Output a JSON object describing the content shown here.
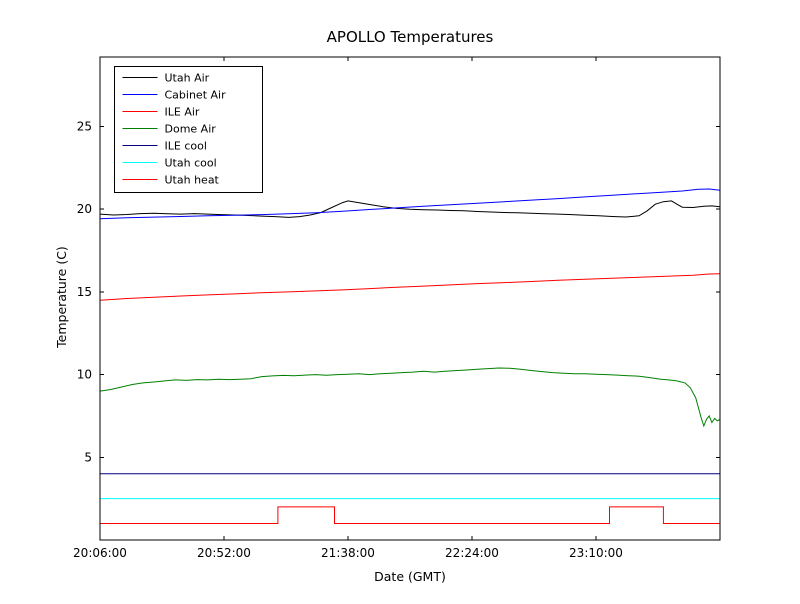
{
  "chart_data": {
    "type": "line",
    "title": "APOLLO Temperatures",
    "xlabel": "Date (GMT)",
    "ylabel": "Temperature (C)",
    "x_axis_unit": "minutes after 20:06:00 GMT",
    "xlim": [
      0,
      230
    ],
    "ylim": [
      0,
      29.2
    ],
    "grid": false,
    "legend_position": "upper-left",
    "frame_color": "#000000",
    "x_ticks": [
      {
        "pos": 0,
        "label": "20:06:00"
      },
      {
        "pos": 46,
        "label": "20:52:00"
      },
      {
        "pos": 92,
        "label": "21:38:00"
      },
      {
        "pos": 138,
        "label": "22:24:00"
      },
      {
        "pos": 184,
        "label": "23:10:00"
      }
    ],
    "y_ticks": [
      {
        "pos": 5,
        "label": "5"
      },
      {
        "pos": 10,
        "label": "10"
      },
      {
        "pos": 15,
        "label": "15"
      },
      {
        "pos": 20,
        "label": "20"
      },
      {
        "pos": 25,
        "label": "25"
      }
    ],
    "series": [
      {
        "name": "Utah Air",
        "color": "#000000",
        "points": [
          [
            0,
            19.7
          ],
          [
            5,
            19.65
          ],
          [
            10,
            19.68
          ],
          [
            15,
            19.73
          ],
          [
            20,
            19.75
          ],
          [
            25,
            19.72
          ],
          [
            30,
            19.7
          ],
          [
            35,
            19.73
          ],
          [
            40,
            19.7
          ],
          [
            45,
            19.67
          ],
          [
            50,
            19.65
          ],
          [
            55,
            19.62
          ],
          [
            60,
            19.58
          ],
          [
            65,
            19.55
          ],
          [
            70,
            19.5
          ],
          [
            74,
            19.55
          ],
          [
            78,
            19.65
          ],
          [
            82,
            19.8
          ],
          [
            86,
            20.1
          ],
          [
            90,
            20.4
          ],
          [
            92,
            20.5
          ],
          [
            95,
            20.42
          ],
          [
            100,
            20.28
          ],
          [
            105,
            20.15
          ],
          [
            110,
            20.05
          ],
          [
            115,
            20.0
          ],
          [
            120,
            19.97
          ],
          [
            125,
            19.95
          ],
          [
            130,
            19.92
          ],
          [
            135,
            19.9
          ],
          [
            140,
            19.86
          ],
          [
            145,
            19.83
          ],
          [
            150,
            19.8
          ],
          [
            155,
            19.78
          ],
          [
            160,
            19.75
          ],
          [
            165,
            19.72
          ],
          [
            170,
            19.7
          ],
          [
            175,
            19.67
          ],
          [
            180,
            19.63
          ],
          [
            185,
            19.6
          ],
          [
            190,
            19.56
          ],
          [
            195,
            19.53
          ],
          [
            200,
            19.6
          ],
          [
            203,
            19.9
          ],
          [
            206,
            20.3
          ],
          [
            209,
            20.45
          ],
          [
            212,
            20.5
          ],
          [
            214,
            20.3
          ],
          [
            216,
            20.12
          ],
          [
            220,
            20.1
          ],
          [
            224,
            20.18
          ],
          [
            227,
            20.2
          ],
          [
            230,
            20.15
          ]
        ]
      },
      {
        "name": "Cabinet Air",
        "color": "#0000ff",
        "points": [
          [
            0,
            19.42
          ],
          [
            10,
            19.48
          ],
          [
            20,
            19.52
          ],
          [
            30,
            19.56
          ],
          [
            40,
            19.6
          ],
          [
            50,
            19.63
          ],
          [
            60,
            19.67
          ],
          [
            70,
            19.72
          ],
          [
            80,
            19.78
          ],
          [
            90,
            19.88
          ],
          [
            100,
            19.98
          ],
          [
            110,
            20.08
          ],
          [
            120,
            20.18
          ],
          [
            130,
            20.27
          ],
          [
            140,
            20.36
          ],
          [
            150,
            20.45
          ],
          [
            160,
            20.55
          ],
          [
            170,
            20.64
          ],
          [
            180,
            20.74
          ],
          [
            190,
            20.84
          ],
          [
            200,
            20.94
          ],
          [
            210,
            21.04
          ],
          [
            216,
            21.1
          ],
          [
            222,
            21.2
          ],
          [
            226,
            21.22
          ],
          [
            230,
            21.15
          ]
        ]
      },
      {
        "name": "ILE Air",
        "color": "#ff0000",
        "points": [
          [
            0,
            14.5
          ],
          [
            10,
            14.6
          ],
          [
            20,
            14.68
          ],
          [
            30,
            14.75
          ],
          [
            40,
            14.82
          ],
          [
            50,
            14.88
          ],
          [
            60,
            14.95
          ],
          [
            70,
            15.0
          ],
          [
            80,
            15.06
          ],
          [
            90,
            15.12
          ],
          [
            100,
            15.2
          ],
          [
            110,
            15.28
          ],
          [
            120,
            15.35
          ],
          [
            130,
            15.42
          ],
          [
            140,
            15.5
          ],
          [
            150,
            15.56
          ],
          [
            160,
            15.63
          ],
          [
            170,
            15.7
          ],
          [
            180,
            15.76
          ],
          [
            190,
            15.82
          ],
          [
            200,
            15.88
          ],
          [
            210,
            15.94
          ],
          [
            220,
            16.0
          ],
          [
            226,
            16.08
          ],
          [
            230,
            16.1
          ]
        ]
      },
      {
        "name": "Dome Air",
        "color": "#008000",
        "points": [
          [
            0,
            9.0
          ],
          [
            4,
            9.1
          ],
          [
            8,
            9.25
          ],
          [
            12,
            9.4
          ],
          [
            16,
            9.5
          ],
          [
            20,
            9.55
          ],
          [
            24,
            9.62
          ],
          [
            28,
            9.68
          ],
          [
            32,
            9.65
          ],
          [
            36,
            9.7
          ],
          [
            40,
            9.68
          ],
          [
            44,
            9.72
          ],
          [
            48,
            9.7
          ],
          [
            52,
            9.72
          ],
          [
            56,
            9.75
          ],
          [
            60,
            9.88
          ],
          [
            64,
            9.92
          ],
          [
            68,
            9.95
          ],
          [
            72,
            9.93
          ],
          [
            76,
            9.97
          ],
          [
            80,
            10.0
          ],
          [
            84,
            9.96
          ],
          [
            88,
            10.0
          ],
          [
            92,
            10.02
          ],
          [
            96,
            10.05
          ],
          [
            100,
            10.0
          ],
          [
            104,
            10.05
          ],
          [
            108,
            10.08
          ],
          [
            112,
            10.12
          ],
          [
            116,
            10.15
          ],
          [
            120,
            10.2
          ],
          [
            124,
            10.15
          ],
          [
            128,
            10.2
          ],
          [
            132,
            10.24
          ],
          [
            136,
            10.28
          ],
          [
            140,
            10.32
          ],
          [
            144,
            10.36
          ],
          [
            148,
            10.4
          ],
          [
            152,
            10.38
          ],
          [
            156,
            10.32
          ],
          [
            160,
            10.25
          ],
          [
            164,
            10.18
          ],
          [
            168,
            10.12
          ],
          [
            172,
            10.08
          ],
          [
            176,
            10.05
          ],
          [
            180,
            10.05
          ],
          [
            184,
            10.02
          ],
          [
            188,
            10.0
          ],
          [
            192,
            9.97
          ],
          [
            196,
            9.93
          ],
          [
            200,
            9.9
          ],
          [
            204,
            9.82
          ],
          [
            208,
            9.72
          ],
          [
            211,
            9.68
          ],
          [
            214,
            9.62
          ],
          [
            217,
            9.5
          ],
          [
            219,
            9.2
          ],
          [
            221,
            8.6
          ],
          [
            223,
            7.4
          ],
          [
            224,
            6.9
          ],
          [
            225,
            7.3
          ],
          [
            226,
            7.5
          ],
          [
            227,
            7.1
          ],
          [
            228,
            7.35
          ],
          [
            229,
            7.2
          ],
          [
            230,
            7.3
          ]
        ]
      },
      {
        "name": "ILE cool",
        "color": "#000080",
        "points": [
          [
            0,
            4.0
          ],
          [
            230,
            4.0
          ]
        ]
      },
      {
        "name": "Utah cool",
        "color": "#00ffff",
        "points": [
          [
            0,
            2.5
          ],
          [
            230,
            2.5
          ]
        ]
      },
      {
        "name": "Utah heat",
        "color": "#ff0000",
        "points": [
          [
            0,
            1.0
          ],
          [
            66,
            1.0
          ],
          [
            66,
            2.0
          ],
          [
            87,
            2.0
          ],
          [
            87,
            1.0
          ],
          [
            189,
            1.0
          ],
          [
            189,
            2.0
          ],
          [
            209,
            2.0
          ],
          [
            209,
            1.0
          ],
          [
            230,
            1.0
          ]
        ]
      }
    ]
  }
}
